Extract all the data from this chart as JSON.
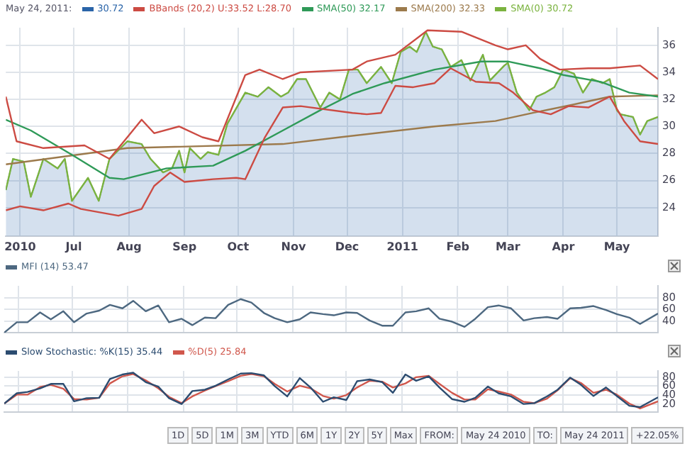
{
  "chart_data": [
    {
      "type": "line",
      "legend_title": "May 24, 2011:",
      "legend": "top left",
      "grid": true,
      "xlim": [
        "2010-05-24",
        "2011-05-24"
      ],
      "xticks": [
        {
          "value": "2010-06-01",
          "label": "2010"
        },
        {
          "value": "2010-07-01",
          "label": "Jul"
        },
        {
          "value": "2010-08-01",
          "label": "Aug"
        },
        {
          "value": "2010-09-01",
          "label": "Sep"
        },
        {
          "value": "2010-10-01",
          "label": "Oct"
        },
        {
          "value": "2010-11-01",
          "label": "Nov"
        },
        {
          "value": "2010-12-01",
          "label": "Dec"
        },
        {
          "value": "2011-01-01",
          "label": "2011"
        },
        {
          "value": "2011-02-01",
          "label": "Feb"
        },
        {
          "value": "2011-03-01",
          "label": "Mar"
        },
        {
          "value": "2011-04-01",
          "label": "Apr"
        },
        {
          "value": "2011-05-01",
          "label": "May"
        }
      ],
      "ylim": [
        21.9,
        37.3
      ],
      "yticks": [
        24,
        26,
        28,
        30,
        32,
        34,
        36
      ],
      "series": [
        {
          "name": "30.72",
          "type": "area",
          "color": "#2a64a8",
          "x": [
            "2010-05-24",
            "2010-05-28",
            "2010-06-03",
            "2010-06-07",
            "2010-06-14",
            "2010-06-22",
            "2010-06-26",
            "2010-06-30",
            "2010-07-09",
            "2010-07-15",
            "2010-07-21",
            "2010-07-31",
            "2010-08-08",
            "2010-08-13",
            "2010-08-20",
            "2010-08-25",
            "2010-08-29",
            "2010-09-01",
            "2010-09-04",
            "2010-09-10",
            "2010-09-14",
            "2010-09-20",
            "2010-09-25",
            "2010-10-05",
            "2010-10-12",
            "2010-10-18",
            "2010-10-25",
            "2010-10-29",
            "2010-11-03",
            "2010-11-08",
            "2010-11-16",
            "2010-11-21",
            "2010-11-27",
            "2010-12-02",
            "2010-12-07",
            "2010-12-12",
            "2010-12-20",
            "2010-12-26",
            "2010-12-31",
            "2011-01-05",
            "2011-01-09",
            "2011-01-14",
            "2011-01-18",
            "2011-01-23",
            "2011-01-28",
            "2011-02-03",
            "2011-02-08",
            "2011-02-15",
            "2011-02-19",
            "2011-02-27",
            "2011-03-01",
            "2011-03-06",
            "2011-03-13",
            "2011-03-17",
            "2011-03-22",
            "2011-03-27",
            "2011-04-01",
            "2011-04-07",
            "2011-04-12",
            "2011-04-17",
            "2011-04-23",
            "2011-04-27",
            "2011-05-01",
            "2011-05-03",
            "2011-05-10",
            "2011-05-14",
            "2011-05-18",
            "2011-05-24"
          ],
          "values": [
            25.3,
            27.6,
            27.4,
            24.8,
            27.6,
            26.9,
            27.6,
            24.5,
            26.2,
            24.5,
            27.6,
            28.9,
            28.7,
            27.6,
            26.6,
            26.9,
            28.2,
            26.6,
            28.4,
            27.6,
            28.1,
            27.9,
            30.2,
            32.5,
            32.2,
            32.9,
            32.2,
            32.5,
            33.5,
            33.5,
            31.4,
            32.5,
            32.0,
            34.2,
            34.2,
            33.2,
            34.4,
            33.2,
            35.5,
            35.9,
            35.5,
            37.0,
            35.9,
            35.7,
            34.4,
            34.9,
            33.4,
            35.3,
            33.4,
            34.5,
            34.7,
            32.5,
            31.2,
            32.2,
            32.5,
            32.9,
            34.2,
            33.9,
            32.5,
            33.5,
            33.2,
            33.5,
            31.2,
            30.9,
            30.7,
            29.4,
            30.4,
            30.7
          ]
        },
        {
          "name": "BBands (20,2) U:33.52 L:28.70",
          "color": "#cc4b43",
          "x": [
            "2010-05-24",
            "2010-05-30",
            "2010-06-14",
            "2010-07-07",
            "2010-07-21",
            "2010-07-31",
            "2010-08-08",
            "2010-08-15",
            "2010-08-29",
            "2010-09-11",
            "2010-09-20",
            "2010-10-05",
            "2010-10-13",
            "2010-10-26",
            "2010-11-05",
            "2010-12-04",
            "2010-12-12",
            "2010-12-28",
            "2011-01-15",
            "2011-02-03",
            "2011-02-22",
            "2011-03-01",
            "2011-03-11",
            "2011-03-19",
            "2011-03-30",
            "2011-04-15",
            "2011-04-27",
            "2011-05-14",
            "2011-05-24"
          ],
          "values": [
            32.2,
            28.9,
            28.4,
            28.6,
            27.6,
            29.2,
            30.5,
            29.5,
            30.0,
            29.2,
            28.9,
            33.8,
            34.2,
            33.5,
            34.0,
            34.2,
            34.8,
            35.3,
            37.1,
            37.0,
            36.0,
            35.7,
            36.0,
            35.0,
            34.2,
            34.3,
            34.3,
            34.5,
            33.5
          ]
        },
        {
          "color": "#cc4b43",
          "x": [
            "2010-05-24",
            "2010-06-01",
            "2010-06-14",
            "2010-06-28",
            "2010-07-05",
            "2010-07-26",
            "2010-08-08",
            "2010-08-15",
            "2010-08-24",
            "2010-09-01",
            "2010-09-17",
            "2010-09-30",
            "2010-10-05",
            "2010-10-16",
            "2010-10-26",
            "2010-11-05",
            "2010-12-04",
            "2010-12-12",
            "2010-12-20",
            "2010-12-28",
            "2011-01-07",
            "2011-01-19",
            "2011-01-28",
            "2011-02-11",
            "2011-02-24",
            "2011-03-04",
            "2011-03-15",
            "2011-03-25",
            "2011-04-04",
            "2011-04-15",
            "2011-04-27",
            "2011-05-05",
            "2011-05-14",
            "2011-05-24"
          ],
          "values": [
            23.8,
            24.1,
            23.8,
            24.3,
            23.9,
            23.4,
            23.9,
            25.6,
            26.6,
            25.9,
            26.1,
            26.2,
            26.1,
            29.2,
            31.4,
            31.5,
            31.0,
            30.9,
            31.0,
            33.0,
            32.9,
            33.2,
            34.3,
            33.3,
            33.2,
            32.5,
            31.2,
            30.9,
            31.5,
            31.4,
            32.2,
            30.4,
            28.9,
            28.7
          ]
        },
        {
          "name": "SMA(50) 32.17",
          "color": "#2f9a58",
          "x": [
            "2010-05-24",
            "2010-06-07",
            "2010-06-30",
            "2010-07-21",
            "2010-07-29",
            "2010-08-22",
            "2010-09-17",
            "2010-10-05",
            "2010-10-26",
            "2010-11-16",
            "2010-12-04",
            "2010-12-22",
            "2011-01-19",
            "2011-02-14",
            "2011-03-01",
            "2011-03-19",
            "2011-04-01",
            "2011-04-22",
            "2011-05-08",
            "2011-05-24"
          ],
          "values": [
            30.5,
            29.7,
            27.9,
            26.2,
            26.1,
            26.9,
            27.1,
            28.2,
            29.7,
            31.2,
            32.4,
            33.2,
            34.2,
            34.8,
            34.8,
            34.3,
            33.8,
            33.3,
            32.5,
            32.2
          ]
        },
        {
          "name": "SMA(200) 32.33",
          "color": "#9c7a4c",
          "x": [
            "2010-05-24",
            "2010-07-31",
            "2010-10-26",
            "2010-11-27",
            "2011-01-19",
            "2011-02-22",
            "2011-03-15",
            "2011-04-06",
            "2011-04-27",
            "2011-05-24"
          ],
          "values": [
            27.2,
            28.4,
            28.7,
            29.2,
            30.0,
            30.4,
            31.0,
            31.6,
            32.2,
            32.3
          ]
        },
        {
          "name": "SMA(0) 30.72",
          "color": "#7bb33f",
          "x": [
            "2010-05-24",
            "2010-05-28",
            "2010-06-03",
            "2010-06-07",
            "2010-06-14",
            "2010-06-22",
            "2010-06-26",
            "2010-06-30",
            "2010-07-09",
            "2010-07-15",
            "2010-07-21",
            "2010-07-31",
            "2010-08-08",
            "2010-08-13",
            "2010-08-20",
            "2010-08-25",
            "2010-08-29",
            "2010-09-01",
            "2010-09-04",
            "2010-09-10",
            "2010-09-14",
            "2010-09-20",
            "2010-09-25",
            "2010-10-05",
            "2010-10-12",
            "2010-10-18",
            "2010-10-25",
            "2010-10-29",
            "2010-11-03",
            "2010-11-08",
            "2010-11-16",
            "2010-11-21",
            "2010-11-27",
            "2010-12-02",
            "2010-12-07",
            "2010-12-12",
            "2010-12-20",
            "2010-12-26",
            "2010-12-31",
            "2011-01-05",
            "2011-01-09",
            "2011-01-14",
            "2011-01-18",
            "2011-01-23",
            "2011-01-28",
            "2011-02-03",
            "2011-02-08",
            "2011-02-15",
            "2011-02-19",
            "2011-02-27",
            "2011-03-01",
            "2011-03-06",
            "2011-03-13",
            "2011-03-17",
            "2011-03-22",
            "2011-03-27",
            "2011-04-01",
            "2011-04-07",
            "2011-04-12",
            "2011-04-17",
            "2011-04-23",
            "2011-04-27",
            "2011-05-01",
            "2011-05-03",
            "2011-05-10",
            "2011-05-14",
            "2011-05-18",
            "2011-05-24"
          ],
          "values": [
            25.3,
            27.6,
            27.4,
            24.8,
            27.6,
            26.9,
            27.6,
            24.5,
            26.2,
            24.5,
            27.6,
            28.9,
            28.7,
            27.6,
            26.6,
            26.9,
            28.2,
            26.6,
            28.4,
            27.6,
            28.1,
            27.9,
            30.2,
            32.5,
            32.2,
            32.9,
            32.2,
            32.5,
            33.5,
            33.5,
            31.4,
            32.5,
            32.0,
            34.2,
            34.2,
            33.2,
            34.4,
            33.2,
            35.5,
            35.9,
            35.5,
            37.0,
            35.9,
            35.7,
            34.4,
            34.9,
            33.4,
            35.3,
            33.4,
            34.5,
            34.7,
            32.5,
            31.2,
            32.2,
            32.5,
            32.9,
            34.2,
            33.9,
            32.5,
            33.5,
            33.2,
            33.5,
            31.2,
            30.9,
            30.7,
            29.4,
            30.4,
            30.7
          ]
        }
      ]
    },
    {
      "type": "line",
      "legend": "top left",
      "grid": true,
      "tick_labels": "y",
      "xlim": [
        "2010-05-24",
        "2011-05-24"
      ],
      "xticks": [
        {
          "value": "2010-06-01",
          "label": null
        },
        {
          "value": "2010-07-01",
          "label": null
        },
        {
          "value": "2010-08-01",
          "label": null
        },
        {
          "value": "2010-09-01",
          "label": null
        },
        {
          "value": "2010-10-01",
          "label": null
        },
        {
          "value": "2010-11-01",
          "label": null
        },
        {
          "value": "2010-12-01",
          "label": null
        },
        {
          "value": "2011-01-01",
          "label": null
        },
        {
          "value": "2011-02-01",
          "label": null
        },
        {
          "value": "2011-03-01",
          "label": null
        },
        {
          "value": "2011-04-01",
          "label": null
        },
        {
          "value": "2011-05-01",
          "label": null
        }
      ],
      "ylim": [
        20,
        101
      ],
      "yticks": [
        40,
        60,
        80
      ],
      "x": [
        "2010-05-24",
        "2010-05-31",
        "2010-06-06",
        "2010-06-13",
        "2010-06-19",
        "2010-06-26",
        "2010-07-02",
        "2010-07-09",
        "2010-07-16",
        "2010-07-22",
        "2010-07-29",
        "2010-08-04",
        "2010-08-11",
        "2010-08-18",
        "2010-08-24",
        "2010-08-31",
        "2010-09-06",
        "2010-09-13",
        "2010-09-19",
        "2010-09-26",
        "2010-10-03",
        "2010-10-09",
        "2010-10-16",
        "2010-10-22",
        "2010-10-29",
        "2010-11-05",
        "2010-11-11",
        "2010-11-18",
        "2010-11-24",
        "2010-12-01",
        "2010-12-07",
        "2010-12-14",
        "2010-12-21",
        "2010-12-27",
        "2011-01-03",
        "2011-01-09",
        "2011-01-16",
        "2011-01-22",
        "2011-01-29",
        "2011-02-05",
        "2011-02-11",
        "2011-02-18",
        "2011-02-24",
        "2011-03-03",
        "2011-03-10",
        "2011-03-16",
        "2011-03-23",
        "2011-03-29",
        "2011-04-05",
        "2011-04-11",
        "2011-04-18",
        "2011-04-25",
        "2011-05-01",
        "2011-05-08",
        "2011-05-14",
        "2011-05-24"
      ],
      "series": [
        {
          "name": "MFI (14) 53.47",
          "color": "#4d6880",
          "values": [
            20,
            38,
            38,
            55,
            43,
            57,
            38,
            53,
            58,
            68,
            62,
            75,
            57,
            67,
            38,
            44,
            33,
            46,
            45,
            68,
            78,
            72,
            54,
            45,
            38,
            43,
            55,
            52,
            50,
            55,
            54,
            41,
            32,
            32,
            55,
            57,
            62,
            44,
            39,
            30,
            44,
            64,
            67,
            62,
            41,
            45,
            47,
            44,
            62,
            63,
            66,
            59,
            52,
            46,
            35,
            53
          ]
        }
      ]
    },
    {
      "type": "line",
      "legend": "top left",
      "grid": true,
      "tick_labels": "y",
      "xlim": [
        "2010-05-24",
        "2011-05-24"
      ],
      "xticks": [
        {
          "value": "2010-06-01",
          "label": null
        },
        {
          "value": "2010-07-01",
          "label": null
        },
        {
          "value": "2010-08-01",
          "label": null
        },
        {
          "value": "2010-09-01",
          "label": null
        },
        {
          "value": "2010-10-01",
          "label": null
        },
        {
          "value": "2010-11-01",
          "label": null
        },
        {
          "value": "2010-12-01",
          "label": null
        },
        {
          "value": "2011-01-01",
          "label": null
        },
        {
          "value": "2011-02-01",
          "label": null
        },
        {
          "value": "2011-03-01",
          "label": null
        },
        {
          "value": "2011-04-01",
          "label": null
        },
        {
          "value": "2011-05-01",
          "label": null
        }
      ],
      "ylim": [
        2,
        94
      ],
      "yticks": [
        20,
        40,
        60,
        80
      ],
      "x": [
        "2010-05-24",
        "2010-05-31",
        "2010-06-06",
        "2010-06-13",
        "2010-06-19",
        "2010-06-26",
        "2010-07-02",
        "2010-07-09",
        "2010-07-16",
        "2010-07-22",
        "2010-07-29",
        "2010-08-04",
        "2010-08-11",
        "2010-08-18",
        "2010-08-24",
        "2010-08-31",
        "2010-09-06",
        "2010-09-13",
        "2010-09-19",
        "2010-09-26",
        "2010-10-03",
        "2010-10-09",
        "2010-10-16",
        "2010-10-22",
        "2010-10-29",
        "2010-11-05",
        "2010-11-11",
        "2010-11-18",
        "2010-11-24",
        "2010-12-01",
        "2010-12-07",
        "2010-12-14",
        "2010-12-21",
        "2010-12-27",
        "2011-01-03",
        "2011-01-09",
        "2011-01-16",
        "2011-01-22",
        "2011-01-29",
        "2011-02-05",
        "2011-02-11",
        "2011-02-18",
        "2011-02-24",
        "2011-03-03",
        "2011-03-10",
        "2011-03-16",
        "2011-03-23",
        "2011-03-29",
        "2011-04-05",
        "2011-04-11",
        "2011-04-18",
        "2011-04-25",
        "2011-05-01",
        "2011-05-08",
        "2011-05-14",
        "2011-05-24"
      ],
      "annotations": [
        "1D",
        "5D",
        "1M",
        "3M",
        "YTD",
        "6M",
        "1Y",
        "2Y",
        "5Y",
        "Max",
        "FROM:",
        "May 24 2010",
        "TO:",
        "May 24 2011",
        "+22.05%"
      ],
      "series": [
        {
          "name": "Slow Stochastic: %K(15) 35.44",
          "color": "#2c4c70",
          "values": [
            21,
            44,
            47,
            55,
            65,
            65,
            26,
            33,
            34,
            76,
            86,
            90,
            69,
            59,
            33,
            20,
            49,
            52,
            61,
            75,
            88,
            89,
            84,
            60,
            37,
            78,
            57,
            25,
            35,
            29,
            71,
            75,
            69,
            45,
            86,
            72,
            82,
            57,
            31,
            25,
            34,
            59,
            44,
            37,
            20,
            22,
            37,
            52,
            79,
            63,
            38,
            57,
            38,
            16,
            13,
            35
          ]
        },
        {
          "name": "%D(5) 25.84",
          "color": "#d0574c",
          "values": [
            21,
            41,
            41,
            58,
            63,
            54,
            31,
            30,
            34,
            66,
            82,
            87,
            73,
            55,
            36,
            22,
            37,
            50,
            60,
            71,
            83,
            87,
            82,
            65,
            48,
            61,
            55,
            38,
            32,
            40,
            57,
            72,
            70,
            57,
            66,
            80,
            83,
            65,
            45,
            30,
            30,
            53,
            48,
            41,
            25,
            22,
            32,
            51,
            78,
            67,
            45,
            52,
            41,
            21,
            10,
            26
          ]
        }
      ]
    }
  ]
}
